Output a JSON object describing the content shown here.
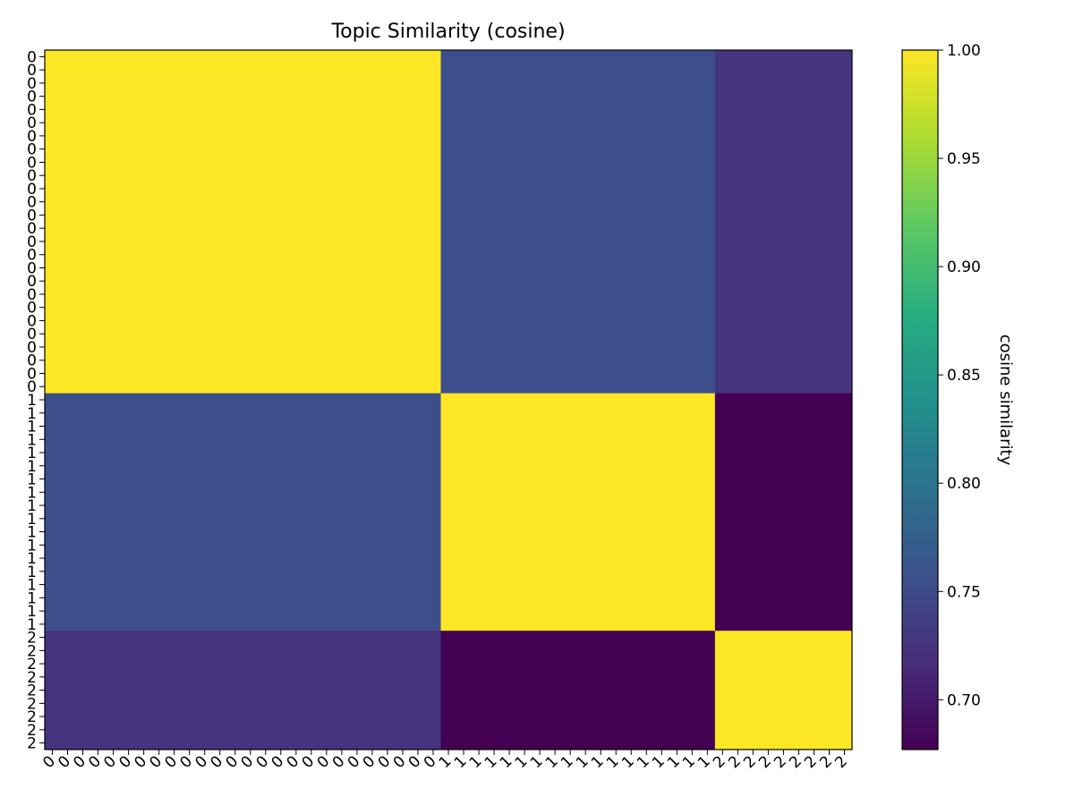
{
  "chart_data": {
    "type": "heatmap",
    "title": "Topic Similarity (cosine)",
    "row_labels": [
      "0",
      "0",
      "0",
      "0",
      "0",
      "0",
      "0",
      "0",
      "0",
      "0",
      "0",
      "0",
      "0",
      "0",
      "0",
      "0",
      "0",
      "0",
      "0",
      "0",
      "0",
      "0",
      "0",
      "0",
      "0",
      "0",
      "1",
      "1",
      "1",
      "1",
      "1",
      "1",
      "1",
      "1",
      "1",
      "1",
      "1",
      "1",
      "1",
      "1",
      "1",
      "1",
      "1",
      "1",
      "2",
      "2",
      "2",
      "2",
      "2",
      "2",
      "2",
      "2",
      "2"
    ],
    "col_labels": [
      "0",
      "0",
      "0",
      "0",
      "0",
      "0",
      "0",
      "0",
      "0",
      "0",
      "0",
      "0",
      "0",
      "0",
      "0",
      "0",
      "0",
      "0",
      "0",
      "0",
      "0",
      "0",
      "0",
      "0",
      "0",
      "0",
      "1",
      "1",
      "1",
      "1",
      "1",
      "1",
      "1",
      "1",
      "1",
      "1",
      "1",
      "1",
      "1",
      "1",
      "1",
      "1",
      "1",
      "1",
      "2",
      "2",
      "2",
      "2",
      "2",
      "2",
      "2",
      "2",
      "2"
    ],
    "topics": [
      "0",
      "1",
      "2"
    ],
    "topic_counts": [
      26,
      18,
      9
    ],
    "topic_similarity": [
      [
        1.0,
        0.755,
        0.725
      ],
      [
        0.755,
        1.0,
        0.677
      ],
      [
        0.725,
        0.677,
        1.0
      ]
    ],
    "vmin": 0.677,
    "vmax": 1.0,
    "colormap": "viridis",
    "colorbar": {
      "label": "cosine similarity",
      "ticks": [
        "1.00",
        "0.95",
        "0.90",
        "0.85",
        "0.80",
        "0.75",
        "0.70"
      ]
    }
  }
}
